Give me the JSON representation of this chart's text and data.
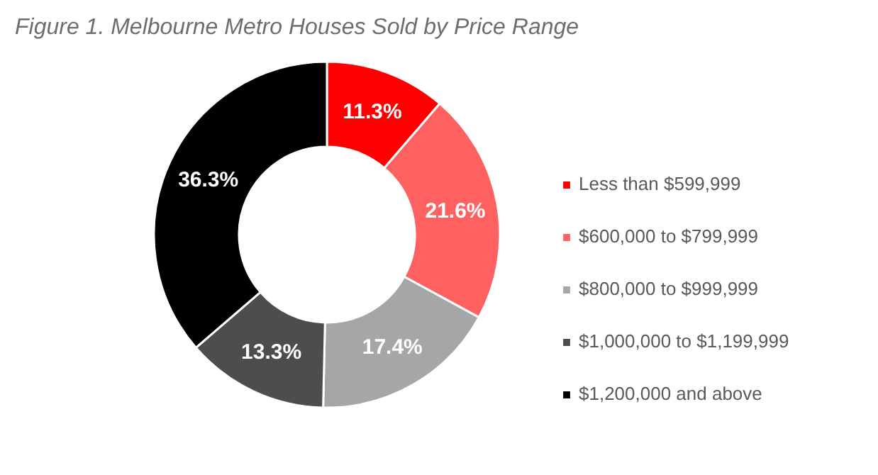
{
  "chart_data": {
    "type": "donut",
    "title": "Figure 1. Melbourne Metro Houses Sold by Price Range",
    "categories": [
      "Less than $599,999",
      "$600,000 to $799,999",
      "$800,000 to $999,999",
      "$1,000,000 to $1,199,999",
      "$1,200,000 and above"
    ],
    "values": [
      11.3,
      21.6,
      17.4,
      13.3,
      36.3
    ],
    "colors": [
      "#ff0000",
      "#ff6161",
      "#a6a6a6",
      "#4d4d4d",
      "#000000"
    ],
    "value_labels": [
      "11.3%",
      "21.6%",
      "17.4%",
      "13.3%",
      "36.3%"
    ],
    "legend": "right"
  }
}
